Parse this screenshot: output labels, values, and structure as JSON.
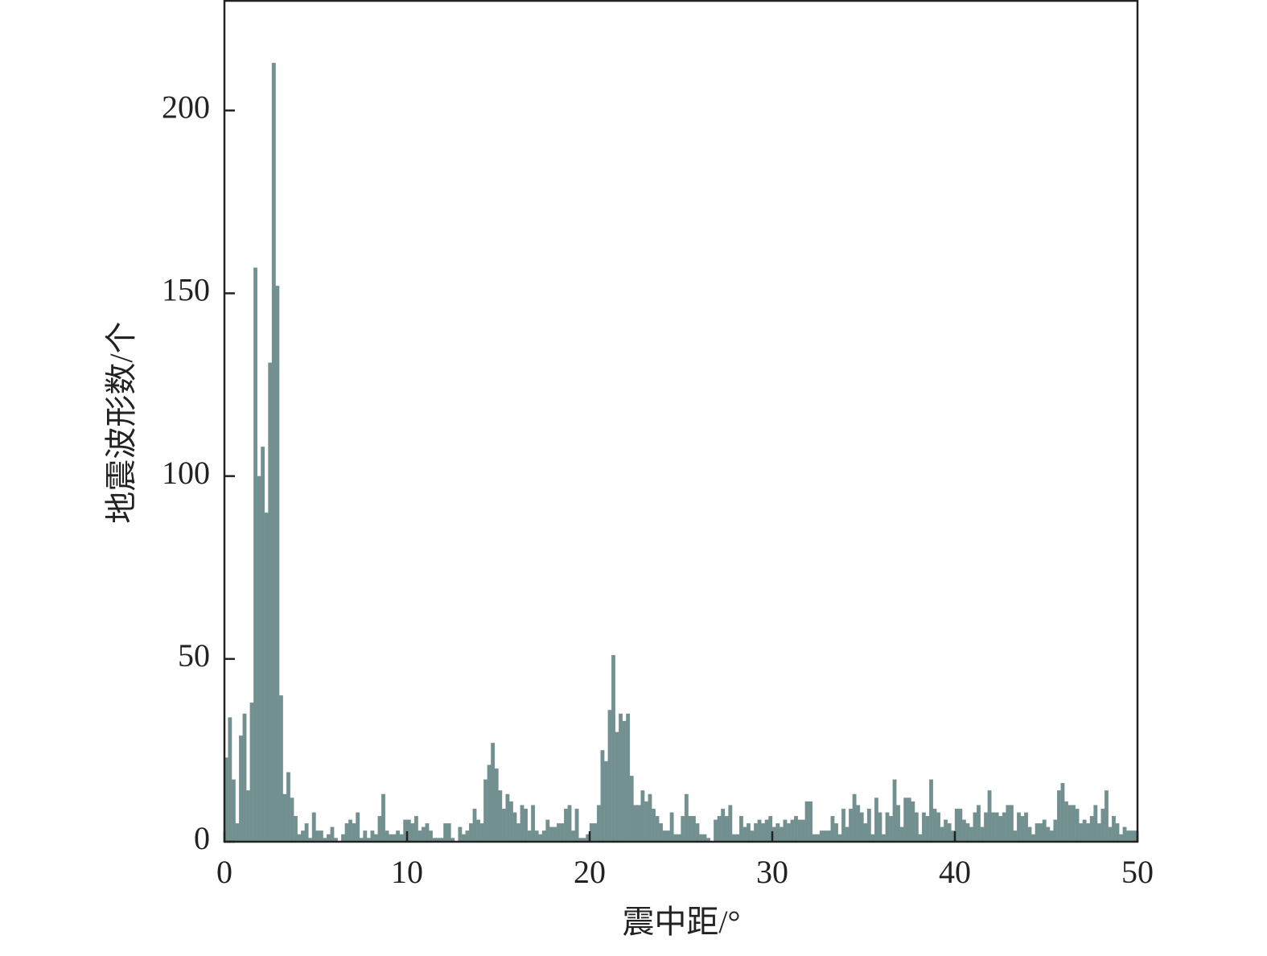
{
  "chart_data": {
    "type": "histogram",
    "x_label": "震中距/°",
    "y_label": "地震波形数/个",
    "color": "#739090",
    "xlim": [
      0,
      50
    ],
    "ylim": [
      0,
      230
    ],
    "xticks": [
      0,
      10,
      20,
      30,
      40,
      50
    ],
    "yticks": [
      0,
      50,
      100,
      150,
      200
    ],
    "bins": [
      0,
      0.2,
      0.4,
      0.6,
      0.8,
      1,
      1.2,
      1.4,
      1.6,
      1.8,
      2,
      2.2,
      2.4,
      2.6,
      2.8,
      3,
      3.2,
      3.4,
      3.6,
      3.8,
      4,
      4.2,
      4.4,
      4.6,
      4.8,
      5,
      5.2,
      5.4,
      5.6,
      5.8,
      6,
      6.2,
      6.4,
      6.6,
      6.8,
      7,
      7.2,
      7.4,
      7.6,
      7.8,
      8,
      8.2,
      8.4,
      8.6,
      8.8,
      9,
      9.2,
      9.4,
      9.6,
      9.8,
      10,
      10.2,
      10.4,
      10.6,
      10.8,
      11,
      11.2,
      11.4,
      11.6,
      11.8,
      12,
      12.2,
      12.4,
      12.6,
      12.8,
      13,
      13.2,
      13.4,
      13.6,
      13.8,
      14,
      14.2,
      14.4,
      14.6,
      14.8,
      15,
      15.2,
      15.4,
      15.6,
      15.8,
      16,
      16.2,
      16.4,
      16.6,
      16.8,
      17,
      17.2,
      17.4,
      17.6,
      17.8,
      18,
      18.2,
      18.4,
      18.6,
      18.8,
      19,
      19.2,
      19.4,
      19.6,
      19.8,
      20,
      20.2,
      20.4,
      20.6,
      20.8,
      21,
      21.2,
      21.4,
      21.6,
      21.8,
      22,
      22.2,
      22.4,
      22.6,
      22.8,
      23,
      23.2,
      23.4,
      23.6,
      23.8,
      24,
      24.2,
      24.4,
      24.6,
      24.8,
      25,
      25.2,
      25.4,
      25.6,
      25.8,
      26,
      26.2,
      26.4,
      26.6,
      26.8,
      27,
      27.2,
      27.4,
      27.6,
      27.8,
      28,
      28.2,
      28.4,
      28.6,
      28.8,
      29,
      29.2,
      29.4,
      29.6,
      29.8,
      30,
      30.2,
      30.4,
      30.6,
      30.8,
      31,
      31.2,
      31.4,
      31.6,
      31.8,
      32,
      32.2,
      32.4,
      32.6,
      32.8,
      33,
      33.2,
      33.4,
      33.6,
      33.8,
      34,
      34.2,
      34.4,
      34.6,
      34.8,
      35,
      35.2,
      35.4,
      35.6,
      35.8,
      36,
      36.2,
      36.4,
      36.6,
      36.8,
      37,
      37.2,
      37.4,
      37.6,
      37.8,
      38,
      38.2,
      38.4,
      38.6,
      38.8,
      39,
      39.2,
      39.4,
      39.6,
      39.8,
      40,
      40.2,
      40.4,
      40.6,
      40.8,
      41,
      41.2,
      41.4,
      41.6,
      41.8,
      42,
      42.2,
      42.4,
      42.6,
      42.8,
      43,
      43.2,
      43.4,
      43.6,
      43.8,
      44,
      44.2,
      44.4,
      44.6,
      44.8,
      45,
      45.2,
      45.4,
      45.6,
      45.8,
      46,
      46.2,
      46.4,
      46.6,
      46.8,
      47,
      47.2,
      47.4,
      47.6,
      47.8,
      48,
      48.2,
      48.4,
      48.6,
      48.8,
      49,
      49.2,
      49.4,
      49.6,
      49.8,
      50
    ],
    "values": [
      23,
      34,
      17,
      5,
      29,
      35,
      14,
      38,
      157,
      100,
      108,
      90,
      131,
      213,
      152,
      40,
      13,
      19,
      12,
      7,
      2,
      3,
      5,
      1,
      8,
      3,
      3,
      1,
      2,
      4,
      1,
      0,
      2,
      5,
      6,
      5,
      8,
      1,
      3,
      1,
      3,
      2,
      7,
      13,
      3,
      2,
      2,
      3,
      2,
      6,
      6,
      5,
      7,
      3,
      4,
      5,
      3,
      1,
      1,
      1,
      5,
      5,
      1,
      0,
      4,
      2,
      3,
      5,
      9,
      6,
      5,
      17,
      21,
      27,
      20,
      14,
      9,
      13,
      11,
      8,
      5,
      10,
      9,
      3,
      10,
      3,
      2,
      3,
      6,
      4,
      4,
      5,
      5,
      9,
      10,
      3,
      9,
      1,
      1,
      2,
      5,
      5,
      10,
      25,
      22,
      36,
      51,
      30,
      35,
      33,
      35,
      18,
      10,
      10,
      14,
      11,
      13,
      9,
      7,
      5,
      3,
      3,
      8,
      2,
      2,
      7,
      13,
      7,
      7,
      5,
      2,
      2,
      1,
      0,
      6,
      7,
      9,
      7,
      10,
      2,
      2,
      7,
      4,
      5,
      3,
      5,
      6,
      5,
      6,
      7,
      4,
      5,
      4,
      6,
      5,
      6,
      7,
      6,
      6,
      11,
      11,
      2,
      2,
      3,
      3,
      3,
      7,
      5,
      2,
      9,
      4,
      9,
      13,
      10,
      8,
      5,
      9,
      2,
      12,
      8,
      2,
      8,
      7,
      17,
      10,
      4,
      12,
      12,
      11,
      8,
      2,
      8,
      7,
      17,
      9,
      8,
      4,
      6,
      5,
      3,
      9,
      9,
      6,
      5,
      4,
      8,
      10,
      4,
      8,
      14,
      8,
      8,
      7,
      8,
      10,
      10,
      3,
      8,
      7,
      8,
      4,
      2,
      5,
      5,
      6,
      4,
      3,
      6,
      14,
      16,
      11,
      10,
      10,
      9,
      5,
      6,
      5,
      7,
      10,
      5,
      9,
      14,
      4,
      7,
      5,
      2,
      4,
      3,
      3,
      3
    ]
  }
}
